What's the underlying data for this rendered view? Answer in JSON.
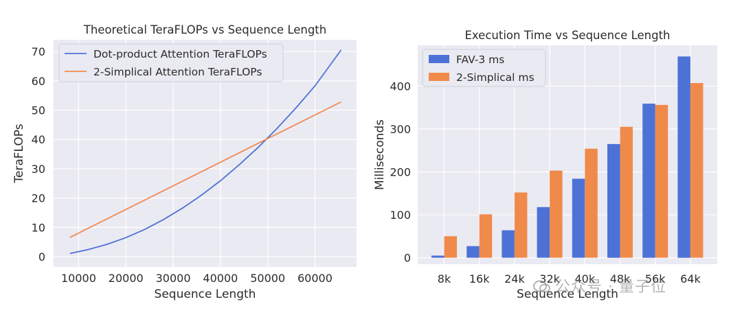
{
  "watermark": {
    "text": "公众号 · 量子位"
  },
  "chart_data": [
    {
      "type": "line",
      "title": "Theoretical TeraFLOPs vs Sequence Length",
      "xlabel": "Sequence Length",
      "ylabel": "TeraFLOPs",
      "xlim": [
        4700,
        68800
      ],
      "ylim": [
        -3.5,
        74
      ],
      "xticks": [
        10000,
        20000,
        30000,
        40000,
        50000,
        60000
      ],
      "yticks": [
        0,
        10,
        20,
        30,
        40,
        50,
        60,
        70
      ],
      "grid": true,
      "legend": "top-left",
      "colors": {
        "background": "#eaeaf2",
        "grid": "#ffffff"
      },
      "series": [
        {
          "name": "Dot-product Attention TeraFLOPs",
          "color": "#4c72d8",
          "x": [
            8192,
            12000,
            16000,
            20000,
            24000,
            28000,
            32000,
            36000,
            40000,
            44000,
            48000,
            52000,
            56000,
            60000,
            65536
          ],
          "y": [
            1.1,
            2.4,
            4.2,
            6.5,
            9.3,
            12.7,
            16.6,
            21.0,
            25.9,
            31.4,
            37.3,
            43.8,
            50.8,
            58.3,
            70.5
          ]
        },
        {
          "name": "2-Simplical Attention TeraFLOPs",
          "color": "#f08a4b",
          "x": [
            8192,
            65536
          ],
          "y": [
            6.6,
            52.8
          ]
        }
      ]
    },
    {
      "type": "bar",
      "title": "Execution Time vs Sequence Length",
      "xlabel": "Sequence Length",
      "ylabel": "Milliseconds",
      "ylim": [
        -15,
        495
      ],
      "yticks": [
        0,
        100,
        200,
        300,
        400
      ],
      "grid": true,
      "legend": "top-left",
      "colors": {
        "background": "#eaeaf2",
        "grid": "#ffffff"
      },
      "categories": [
        "8k",
        "16k",
        "24k",
        "32k",
        "40k",
        "48k",
        "56k",
        "64k"
      ],
      "series": [
        {
          "name": "FAV-3 ms",
          "color": "#4c72d8",
          "values": [
            5,
            27,
            64,
            118,
            184,
            265,
            359,
            469
          ]
        },
        {
          "name": "2-Simplical ms",
          "color": "#f08a4b",
          "values": [
            50,
            101,
            152,
            203,
            254,
            305,
            356,
            407
          ]
        }
      ]
    }
  ]
}
